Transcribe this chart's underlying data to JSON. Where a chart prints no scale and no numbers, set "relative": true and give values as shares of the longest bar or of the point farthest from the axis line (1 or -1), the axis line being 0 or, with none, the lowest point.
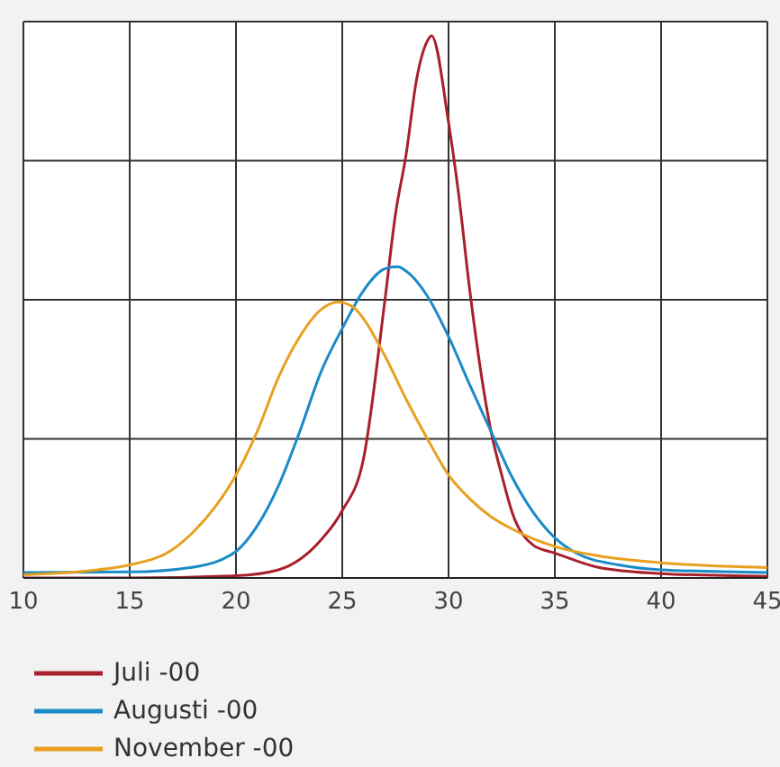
{
  "chart_data": {
    "type": "line",
    "relative": true,
    "xlim": [
      10,
      45
    ],
    "xticks": [
      10,
      15,
      20,
      25,
      30,
      35,
      40,
      45
    ],
    "grid": true,
    "legend": "bottom left",
    "marker": "none",
    "series": [
      {
        "name": "Juli -00",
        "color": "#a8202c",
        "x": [
          10,
          15,
          20,
          22,
          24,
          25,
          26,
          27,
          27.5,
          28,
          28.5,
          29,
          29.2,
          30,
          30.5,
          31,
          32,
          32.5,
          33,
          34,
          35,
          37,
          40,
          45
        ],
        "values": [
          0,
          0,
          0.004,
          0.015,
          0.07,
          0.124,
          0.22,
          0.51,
          0.67,
          0.78,
          0.92,
          0.99,
          1,
          0.84,
          0.7,
          0.53,
          0.27,
          0.19,
          0.12,
          0.06,
          0.046,
          0.02,
          0.008,
          0.003
        ]
      },
      {
        "name": "Augusti -00",
        "color": "#1a8ac8",
        "x": [
          10,
          15,
          18,
          20,
          21,
          22,
          23,
          24,
          25,
          26,
          27,
          27.6,
          28,
          29,
          30,
          31,
          32,
          33,
          34,
          35,
          36,
          38,
          40,
          45
        ],
        "values": [
          0.01,
          0.011,
          0.02,
          0.049,
          0.096,
          0.17,
          0.27,
          0.38,
          0.46,
          0.53,
          0.57,
          0.574,
          0.566,
          0.52,
          0.445,
          0.356,
          0.27,
          0.185,
          0.12,
          0.074,
          0.046,
          0.024,
          0.015,
          0.01
        ]
      },
      {
        "name": "November -00",
        "color": "#e8a020",
        "x": [
          10,
          13,
          15,
          17,
          18,
          19,
          20,
          21,
          22,
          23,
          24,
          24.8,
          25.5,
          26,
          27,
          28,
          29,
          30,
          31,
          32,
          33,
          34,
          35,
          37,
          40,
          45
        ],
        "values": [
          0.006,
          0.013,
          0.024,
          0.052,
          0.085,
          0.13,
          0.19,
          0.27,
          0.37,
          0.445,
          0.495,
          0.509,
          0.5,
          0.478,
          0.41,
          0.33,
          0.257,
          0.19,
          0.146,
          0.113,
          0.09,
          0.072,
          0.058,
          0.041,
          0.028,
          0.019
        ]
      }
    ]
  }
}
